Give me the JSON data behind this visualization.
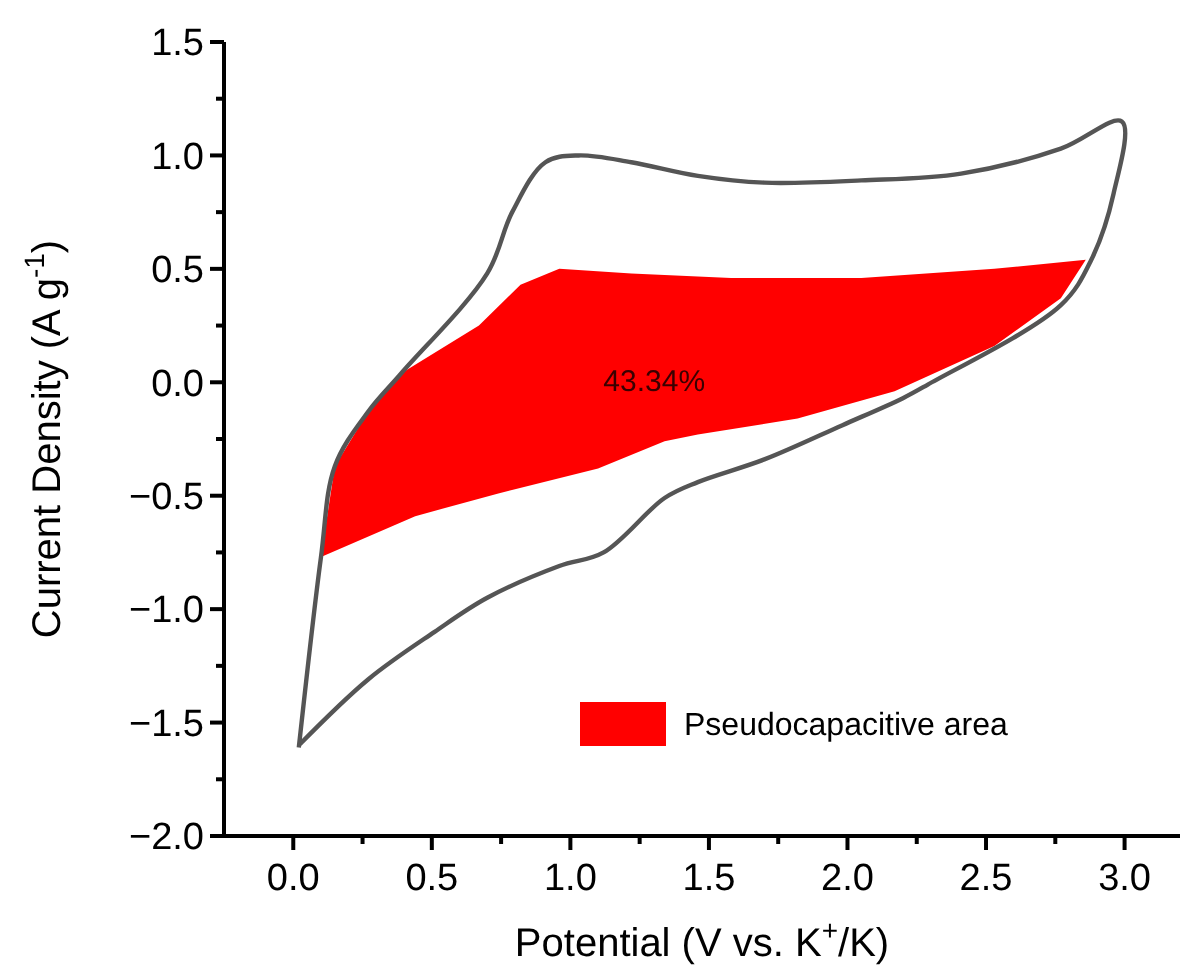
{
  "chart_data": {
    "type": "line",
    "xlabel": "Potential (V vs. K$^{+}$/K)",
    "ylabel": "Current Density (A g$^{-1}$)",
    "xlim": [
      -0.25,
      3.2
    ],
    "ylim": [
      -2.0,
      1.5
    ],
    "xticks": [
      {
        "value": 0,
        "label": "0.0"
      },
      {
        "value": 0.25,
        "label": null
      },
      0.5,
      {
        "value": 0.75,
        "label": null
      },
      {
        "value": 1,
        "label": "1.0"
      },
      {
        "value": 1.25,
        "label": null
      },
      1.5,
      {
        "value": 1.75,
        "label": null
      },
      {
        "value": 2,
        "label": "2.0"
      },
      {
        "value": 2.25,
        "label": null
      },
      2.5,
      {
        "value": 2.75,
        "label": null
      },
      {
        "value": 3,
        "label": "3.0"
      }
    ],
    "yticks": [
      {
        "value": -2,
        "label": "−2.0"
      },
      {
        "value": -1.75,
        "label": null
      },
      {
        "value": -1.5,
        "label": "−1.5"
      },
      {
        "value": -1.25,
        "label": null
      },
      {
        "value": -1,
        "label": "−1.0"
      },
      {
        "value": -0.75,
        "label": null
      },
      {
        "value": -0.5,
        "label": "−0.5"
      },
      {
        "value": -0.25,
        "label": null
      },
      {
        "value": 0,
        "label": "0.0"
      },
      {
        "value": 0.25,
        "label": null
      },
      0.5,
      {
        "value": 0.75,
        "label": null
      },
      {
        "value": 1,
        "label": "1.0"
      },
      {
        "value": 1.25,
        "label": null
      },
      1.5
    ],
    "legend": "bottom right",
    "grid": false,
    "marker": "none",
    "line_style": "solid",
    "annotations": [
      "43.34%"
    ],
    "series": [
      {
        "type": "area",
        "name": "Pseudocapacitive area",
        "color": "#ff0000",
        "x": [
          0.1,
          0.15,
          0.27,
          0.39,
          0.67,
          0.82,
          0.96,
          1.22,
          1.58,
          2.05,
          2.53,
          2.86,
          2.77,
          2.53,
          2.17,
          1.82,
          1.46,
          1.34,
          1.1,
          0.74,
          0.44,
          0.1
        ],
        "values": [
          -0.77,
          -0.37,
          -0.13,
          0.04,
          0.25,
          0.43,
          0.5,
          0.48,
          0.46,
          0.46,
          0.5,
          0.54,
          0.37,
          0.16,
          -0.04,
          -0.16,
          -0.23,
          -0.26,
          -0.38,
          -0.49,
          -0.59,
          -0.77
        ]
      },
      {
        "color": "#555555",
        "x": [
          0.02,
          0.1,
          0.15,
          0.27,
          0.39,
          0.7,
          0.79,
          0.91,
          1.03,
          1.22,
          1.46,
          1.7,
          2.05,
          2.41,
          2.77,
          2.99,
          2.96,
          2.88,
          2.77,
          2.29,
          2.2,
          1.98,
          1.7,
          1.46,
          1.34,
          1.12,
          0.96,
          0.7,
          0.51,
          0.27,
          0.02
        ],
        "values": [
          -1.61,
          -0.77,
          -0.37,
          -0.13,
          0.04,
          0.48,
          0.75,
          0.97,
          1.0,
          0.97,
          0.91,
          0.88,
          0.89,
          0.92,
          1.03,
          1.15,
          0.83,
          0.54,
          0.34,
          -0.01,
          -0.07,
          -0.19,
          -0.34,
          -0.44,
          -0.51,
          -0.75,
          -0.81,
          -0.95,
          -1.1,
          -1.31,
          -1.6
        ]
      }
    ]
  }
}
